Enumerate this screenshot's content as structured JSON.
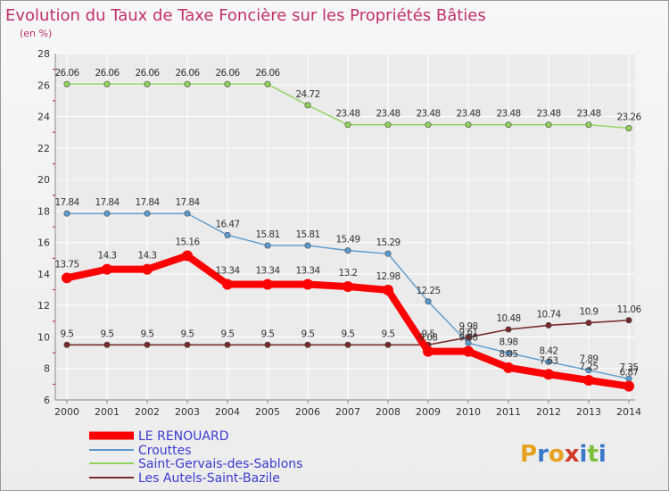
{
  "title": "Evolution du Taux de Taxe Foncière sur les Propriétés Bâties",
  "subtitle": "(en %)",
  "logo": "Proxiti",
  "colors": {
    "title": "#c0306a",
    "axis": "#888888",
    "grid": "#ffffff",
    "plot_bg": "#ebebeb"
  },
  "chart_data": {
    "type": "line",
    "x": [
      "2000",
      "2001",
      "2002",
      "2003",
      "2004",
      "2005",
      "2006",
      "2007",
      "2008",
      "2009",
      "2010",
      "2011",
      "2012",
      "2013",
      "2014"
    ],
    "ylim": [
      6,
      28
    ],
    "yticks": [
      "6",
      "8",
      "10",
      "12",
      "14",
      "16",
      "18",
      "20",
      "22",
      "24",
      "26",
      "28"
    ],
    "grid": true,
    "legend": "bottom-left",
    "series": [
      {
        "name": "LE RENOUARD",
        "color": "#ff0000",
        "values": [
          13.75,
          14.3,
          14.3,
          15.16,
          13.34,
          13.34,
          13.34,
          13.2,
          12.98,
          9.08,
          9.08,
          8.05,
          7.63,
          7.25,
          6.87
        ],
        "labels": [
          "13.75",
          "14.3",
          "14.3",
          "15.16",
          "13.34",
          "13.34",
          "13.34",
          "13.2",
          "12.98",
          "9.08",
          "9.08",
          "8.05",
          "7.63",
          "7.25",
          "6.87"
        ]
      },
      {
        "name": "Crouttes",
        "color": "#5b9bd0",
        "values": [
          17.84,
          17.84,
          17.84,
          17.84,
          16.47,
          15.81,
          15.81,
          15.49,
          15.29,
          12.25,
          9.61,
          8.98,
          8.42,
          7.89,
          7.35
        ],
        "labels": [
          "17.84",
          "17.84",
          "17.84",
          "17.84",
          "16.47",
          "15.81",
          "15.81",
          "15.49",
          "15.29",
          "12.25",
          "9.61",
          "8.98",
          "8.42",
          "7.89",
          "7.35"
        ]
      },
      {
        "name": "Saint-Gervais-des-Sablons",
        "color": "#8fd35a",
        "values": [
          26.06,
          26.06,
          26.06,
          26.06,
          26.06,
          26.06,
          24.72,
          23.48,
          23.48,
          23.48,
          23.48,
          23.48,
          23.48,
          23.48,
          23.26
        ],
        "labels": [
          "26.06",
          "26.06",
          "26.06",
          "26.06",
          "26.06",
          "26.06",
          "24.72",
          "23.48",
          "23.48",
          "23.48",
          "23.48",
          "23.48",
          "23.48",
          "23.48",
          "23.26"
        ]
      },
      {
        "name": "Les Autels-Saint-Bazile",
        "color": "#7a2a2a",
        "values": [
          9.5,
          9.5,
          9.5,
          9.5,
          9.5,
          9.5,
          9.5,
          9.5,
          9.5,
          9.5,
          9.98,
          10.48,
          10.74,
          10.9,
          11.06
        ],
        "labels": [
          "9.5",
          "9.5",
          "9.5",
          "9.5",
          "9.5",
          "9.5",
          "9.5",
          "9.5",
          "9.5",
          "9.5",
          "9.98",
          "10.48",
          "10.74",
          "10.9",
          "11.06"
        ]
      }
    ]
  }
}
